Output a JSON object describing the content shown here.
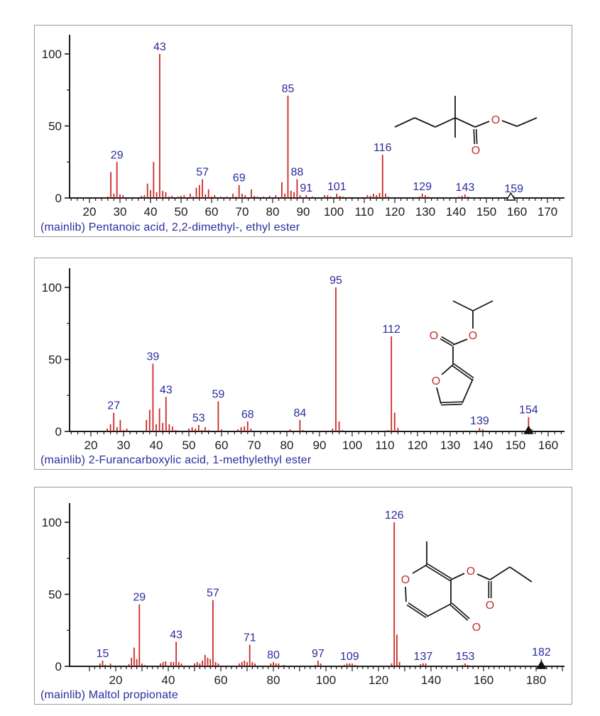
{
  "colors": {
    "peak_bar": "#cc2a27",
    "peak_label": "#2b2b9e",
    "caption": "#2b2b9e",
    "axis": "#1c1c1c",
    "panel_border": "#9a9a9a",
    "atom_oxygen": "#c52f2a"
  },
  "chart_data": [
    {
      "type": "bar",
      "caption": "(mainlib) Pentanoic acid, 2,2-dimethyl-, ethyl ester",
      "y_axis": {
        "ticks": [
          0,
          50,
          100
        ],
        "minor_ticks": [
          25,
          75
        ],
        "range": [
          0,
          110
        ]
      },
      "x_axis": {
        "tick_labels": [
          20,
          30,
          40,
          50,
          60,
          70,
          80,
          90,
          100,
          110,
          120,
          130,
          140,
          150,
          160,
          170
        ],
        "minor_tick_step": 2,
        "range": [
          14,
          176
        ]
      },
      "peaks": [
        [
          26,
          1
        ],
        [
          27,
          18
        ],
        [
          28,
          3
        ],
        [
          29,
          25
        ],
        [
          30,
          2.5
        ],
        [
          31,
          2
        ],
        [
          37,
          1.5
        ],
        [
          38,
          2
        ],
        [
          39,
          10
        ],
        [
          40,
          5.5
        ],
        [
          41,
          25
        ],
        [
          42,
          4
        ],
        [
          43,
          100
        ],
        [
          44,
          5
        ],
        [
          45,
          4
        ],
        [
          46,
          1
        ],
        [
          47,
          1.5
        ],
        [
          49,
          1
        ],
        [
          50,
          1.5
        ],
        [
          51,
          2
        ],
        [
          53,
          3
        ],
        [
          54,
          1
        ],
        [
          55,
          7
        ],
        [
          56,
          9
        ],
        [
          57,
          13
        ],
        [
          58,
          2.5
        ],
        [
          59,
          6
        ],
        [
          60,
          1
        ],
        [
          61,
          2
        ],
        [
          63,
          1
        ],
        [
          65,
          1
        ],
        [
          67,
          3
        ],
        [
          68,
          1
        ],
        [
          69,
          9
        ],
        [
          70,
          3
        ],
        [
          71,
          2
        ],
        [
          73,
          6
        ],
        [
          74,
          1.5
        ],
        [
          75,
          1
        ],
        [
          77,
          1
        ],
        [
          79,
          1.5
        ],
        [
          81,
          2
        ],
        [
          83,
          11
        ],
        [
          84,
          3
        ],
        [
          85,
          71
        ],
        [
          86,
          5
        ],
        [
          87,
          4
        ],
        [
          88,
          13
        ],
        [
          89,
          2
        ],
        [
          91,
          2
        ],
        [
          93,
          1
        ],
        [
          97,
          2
        ],
        [
          98,
          2
        ],
        [
          99,
          1
        ],
        [
          101,
          3
        ],
        [
          102,
          1.5
        ],
        [
          103,
          1
        ],
        [
          111,
          2
        ],
        [
          112,
          1.5
        ],
        [
          113,
          3
        ],
        [
          114,
          2
        ],
        [
          115,
          3.5
        ],
        [
          116,
          30
        ],
        [
          117,
          3
        ],
        [
          118,
          1
        ],
        [
          128,
          1
        ],
        [
          129,
          3
        ],
        [
          130,
          2
        ],
        [
          131,
          1
        ],
        [
          141,
          1
        ],
        [
          142,
          1.5
        ],
        [
          143,
          2.5
        ],
        [
          144,
          1
        ],
        [
          159,
          1.5
        ]
      ],
      "labeled_peaks": [
        29,
        43,
        57,
        69,
        85,
        88,
        91,
        101,
        116,
        129,
        143,
        159
      ],
      "molecular_ion": {
        "mz": 158,
        "marker": "open-triangle"
      },
      "structure": {
        "atom_symbol": "O",
        "oxygen_count": 2
      }
    },
    {
      "type": "bar",
      "caption": "(mainlib) 2-Furancarboxylic acid, 1-methylethyl ester",
      "y_axis": {
        "ticks": [
          0,
          50,
          100
        ],
        "minor_ticks": [
          25,
          75
        ],
        "range": [
          0,
          110
        ]
      },
      "x_axis": {
        "tick_labels": [
          20,
          30,
          40,
          50,
          60,
          70,
          80,
          90,
          100,
          110,
          120,
          130,
          140,
          150,
          160
        ],
        "minor_tick_step": 2,
        "range": [
          14,
          166
        ]
      },
      "peaks": [
        [
          25,
          2
        ],
        [
          26,
          5
        ],
        [
          27,
          13
        ],
        [
          28,
          3
        ],
        [
          29,
          8
        ],
        [
          30,
          1
        ],
        [
          31,
          2
        ],
        [
          37,
          8
        ],
        [
          38,
          15
        ],
        [
          39,
          47
        ],
        [
          40,
          5
        ],
        [
          41,
          16
        ],
        [
          42,
          6
        ],
        [
          43,
          24
        ],
        [
          44,
          5
        ],
        [
          45,
          3.5
        ],
        [
          46,
          1
        ],
        [
          50,
          2
        ],
        [
          51,
          3
        ],
        [
          52,
          2
        ],
        [
          53,
          4.5
        ],
        [
          54,
          1
        ],
        [
          55,
          3
        ],
        [
          56,
          1
        ],
        [
          59,
          21
        ],
        [
          60,
          1.5
        ],
        [
          65,
          1.5
        ],
        [
          66,
          3
        ],
        [
          67,
          3.5
        ],
        [
          68,
          7
        ],
        [
          69,
          2
        ],
        [
          81,
          1.5
        ],
        [
          84,
          8
        ],
        [
          85,
          1
        ],
        [
          94,
          2
        ],
        [
          95,
          100
        ],
        [
          96,
          7
        ],
        [
          97,
          1
        ],
        [
          111,
          1
        ],
        [
          112,
          66
        ],
        [
          113,
          13
        ],
        [
          114,
          2.5
        ],
        [
          139,
          2.5
        ],
        [
          140,
          1.5
        ],
        [
          154,
          10
        ],
        [
          155,
          1.5
        ]
      ],
      "labeled_peaks": [
        27,
        39,
        43,
        53,
        59,
        68,
        84,
        95,
        112,
        139,
        154
      ],
      "molecular_ion": {
        "mz": 154,
        "marker": "filled-triangle"
      },
      "structure": {
        "atom_symbol": "O",
        "oxygen_count": 3
      }
    },
    {
      "type": "bar",
      "caption": "(mainlib) Maltol propionate",
      "y_axis": {
        "ticks": [
          0,
          50,
          100
        ],
        "minor_ticks": [
          25,
          75
        ],
        "range": [
          0,
          110
        ]
      },
      "x_axis": {
        "tick_labels": [
          20,
          40,
          60,
          80,
          100,
          120,
          140,
          160,
          180
        ],
        "minor_tick_step": 2,
        "range": [
          10,
          190
        ]
      },
      "peaks": [
        [
          14,
          2
        ],
        [
          15,
          4
        ],
        [
          16,
          1
        ],
        [
          18,
          2
        ],
        [
          25,
          1.5
        ],
        [
          26,
          6
        ],
        [
          27,
          13
        ],
        [
          28,
          5
        ],
        [
          29,
          43
        ],
        [
          30,
          2
        ],
        [
          31,
          1
        ],
        [
          37,
          2
        ],
        [
          38,
          3
        ],
        [
          39,
          3.5
        ],
        [
          41,
          3
        ],
        [
          42,
          3
        ],
        [
          43,
          17
        ],
        [
          44,
          3
        ],
        [
          45,
          2
        ],
        [
          50,
          2
        ],
        [
          51,
          3
        ],
        [
          52,
          2
        ],
        [
          53,
          4
        ],
        [
          54,
          8
        ],
        [
          55,
          6
        ],
        [
          56,
          5
        ],
        [
          57,
          46
        ],
        [
          58,
          3
        ],
        [
          59,
          2
        ],
        [
          67,
          2
        ],
        [
          68,
          3
        ],
        [
          69,
          4
        ],
        [
          70,
          3
        ],
        [
          71,
          15
        ],
        [
          72,
          3
        ],
        [
          73,
          2
        ],
        [
          79,
          2
        ],
        [
          80,
          3
        ],
        [
          81,
          2
        ],
        [
          82,
          2
        ],
        [
          84,
          1
        ],
        [
          96,
          1
        ],
        [
          97,
          4
        ],
        [
          98,
          2
        ],
        [
          107,
          1
        ],
        [
          108,
          2
        ],
        [
          109,
          2
        ],
        [
          110,
          2
        ],
        [
          111,
          1
        ],
        [
          125,
          2
        ],
        [
          126,
          100
        ],
        [
          127,
          22
        ],
        [
          128,
          3
        ],
        [
          136,
          1.5
        ],
        [
          137,
          2
        ],
        [
          138,
          2
        ],
        [
          152,
          1
        ],
        [
          153,
          2
        ],
        [
          154,
          1
        ],
        [
          182,
          5
        ]
      ],
      "labeled_peaks": [
        15,
        29,
        43,
        57,
        71,
        80,
        97,
        109,
        126,
        137,
        153,
        182
      ],
      "molecular_ion": {
        "mz": 182,
        "marker": "filled-triangle"
      },
      "structure": {
        "atom_symbol": "O",
        "oxygen_count": 4
      }
    }
  ]
}
